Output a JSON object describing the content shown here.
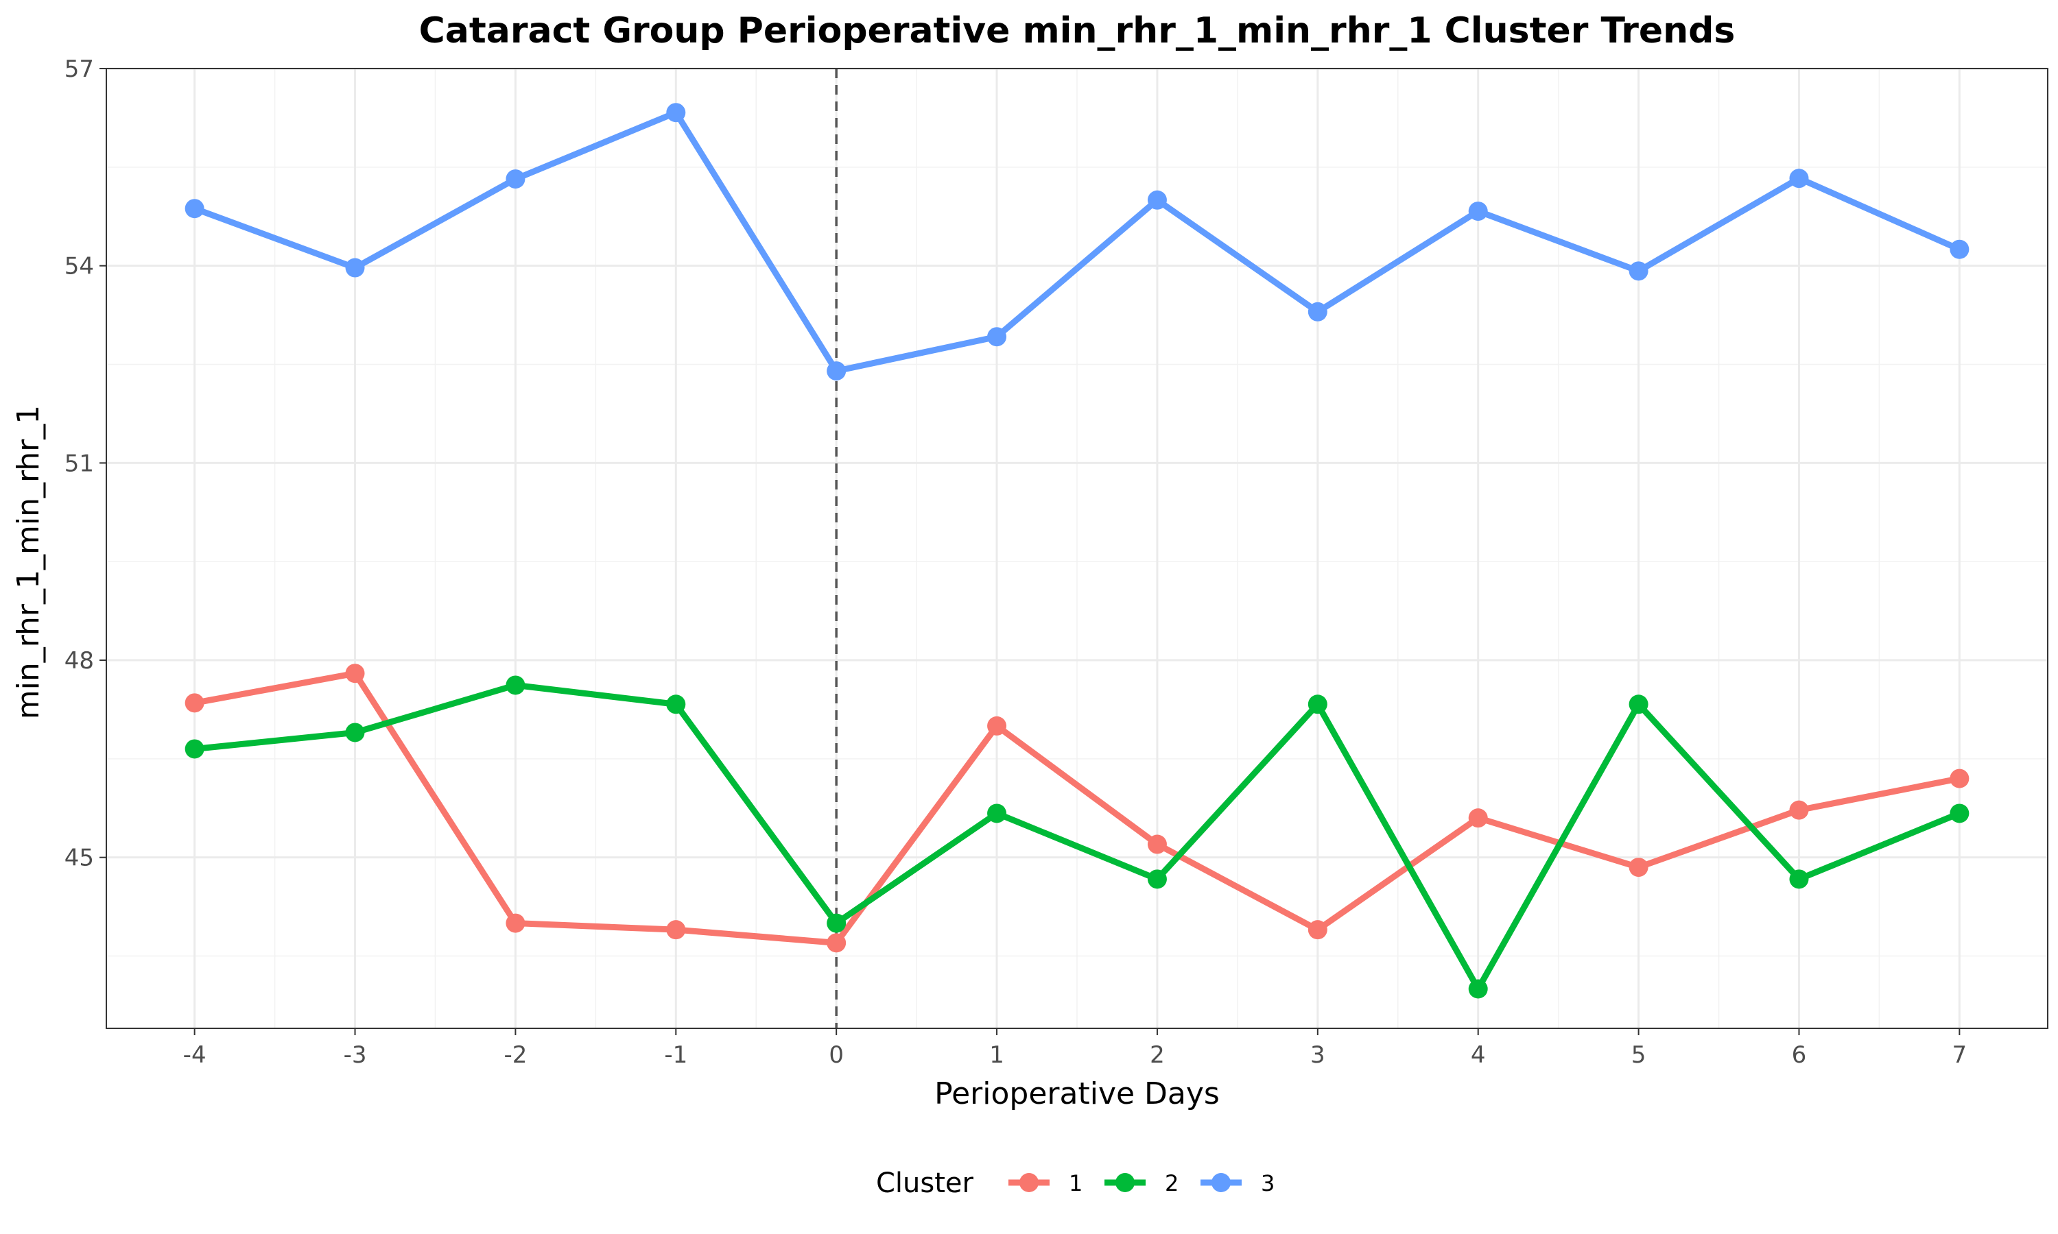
{
  "chart_data": {
    "type": "line",
    "title": "Cataract Group Perioperative min_rhr_1_min_rhr_1 Cluster Trends",
    "xlabel": "Perioperative Days",
    "ylabel": "min_rhr_1_min_rhr_1",
    "x": [
      -4,
      -3,
      -2,
      -1,
      0,
      1,
      2,
      3,
      4,
      5,
      6,
      7
    ],
    "xlim": [
      -4.55,
      7.55
    ],
    "ylim": [
      42.4,
      57.0
    ],
    "x_ticks": [
      "-4",
      "-3",
      "-2",
      "-1",
      "0",
      "1",
      "2",
      "3",
      "4",
      "5",
      "6",
      "7"
    ],
    "y_ticks": [
      "45",
      "48",
      "51",
      "54",
      "57"
    ],
    "y_tick_values": [
      45,
      48,
      51,
      54,
      57
    ],
    "grid": true,
    "reference_line": {
      "x": 0,
      "style": "dashed",
      "color": "#555555"
    },
    "legend": {
      "title": "Cluster",
      "position": "bottom"
    },
    "series": [
      {
        "name": "1",
        "color": "#F8766D",
        "values": [
          47.35,
          47.8,
          44.0,
          43.9,
          43.7,
          47.0,
          45.2,
          43.9,
          45.6,
          44.85,
          45.72,
          46.2
        ]
      },
      {
        "name": "2",
        "color": "#00BA38",
        "values": [
          46.65,
          46.9,
          47.62,
          47.33,
          44.0,
          45.67,
          44.67,
          47.33,
          43.0,
          47.33,
          44.67,
          45.67
        ]
      },
      {
        "name": "3",
        "color": "#619CFF",
        "values": [
          54.87,
          53.97,
          55.32,
          56.33,
          52.4,
          52.92,
          55.0,
          53.3,
          54.83,
          53.92,
          55.33,
          54.25
        ]
      }
    ]
  }
}
